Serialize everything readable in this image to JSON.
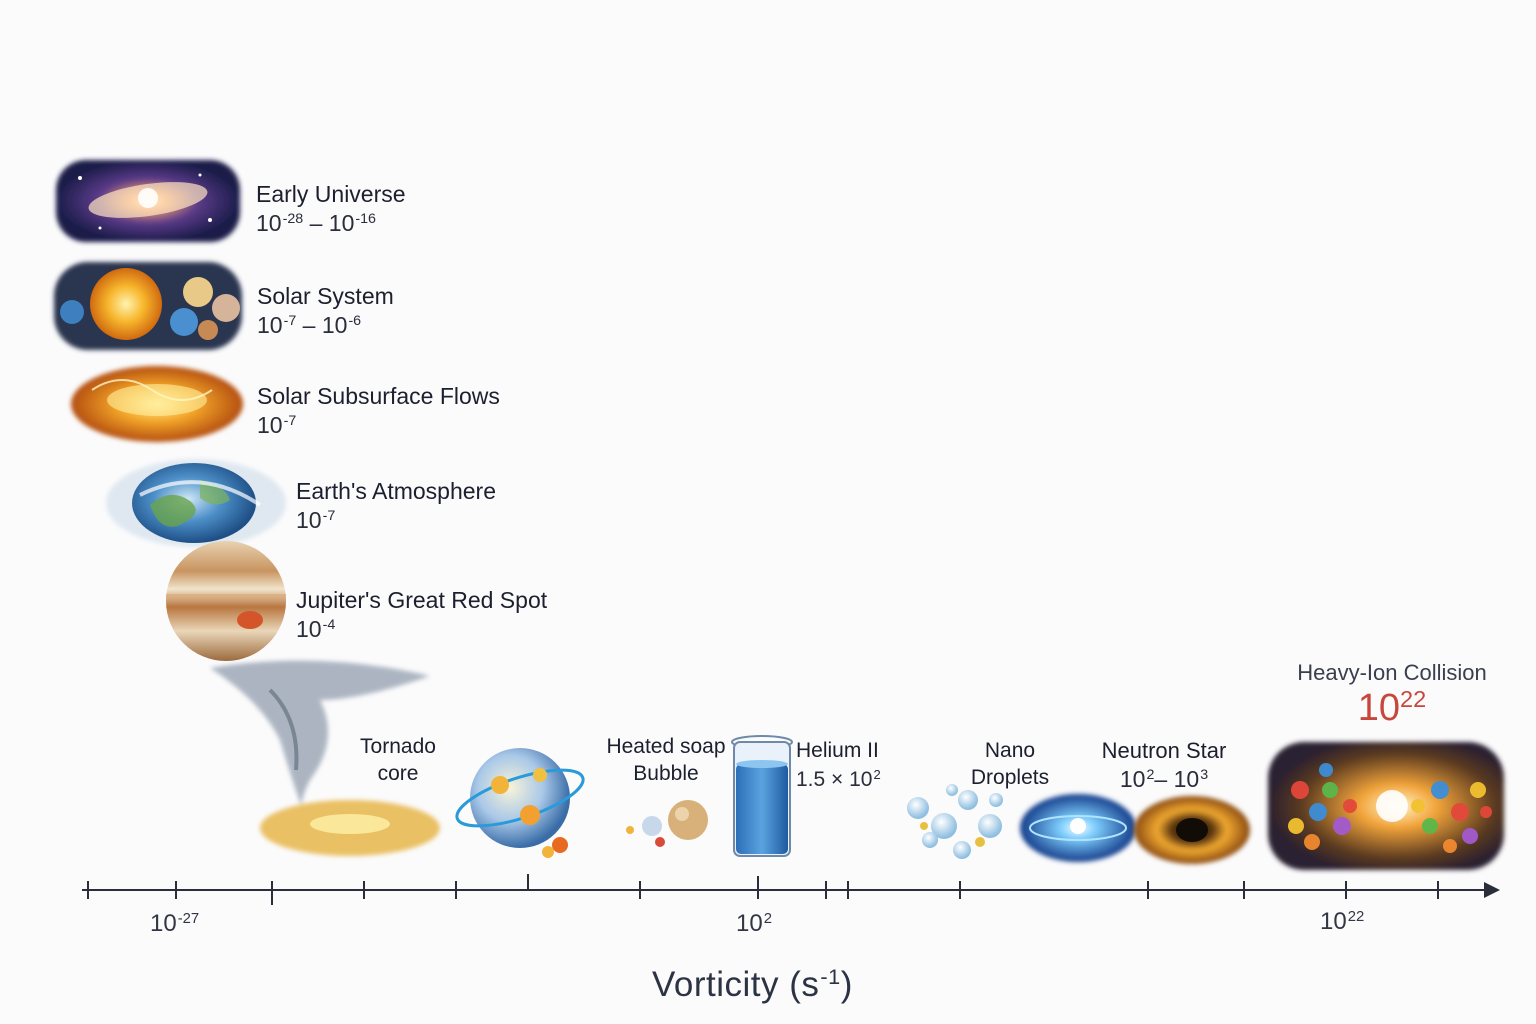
{
  "items": [
    {
      "name": "Early Universe",
      "value": {
        "base1": "10",
        "exp1": "-28",
        "sep": " – ",
        "base2": "10",
        "exp2": "-16"
      },
      "icon": "galaxy-icon"
    },
    {
      "name": "Solar System",
      "value": {
        "base1": "10",
        "exp1": "-7",
        "sep": " – ",
        "base2": "10",
        "exp2": "-6"
      },
      "icon": "solar-system-icon"
    },
    {
      "name": "Solar Subsurface Flows",
      "value": {
        "base1": "10",
        "exp1": "-7"
      },
      "icon": "sun-surface-icon"
    },
    {
      "name": "Earth's Atmosphere",
      "value": {
        "base1": "10",
        "exp1": "-7"
      },
      "icon": "earth-icon"
    },
    {
      "name": "Jupiter's Great Red Spot",
      "value": {
        "base1": "10",
        "exp1": "-4"
      },
      "icon": "jupiter-icon"
    }
  ],
  "bottom_items": {
    "tornado": {
      "line1": "Tornado",
      "line2": "core",
      "icon": "tornado-icon"
    },
    "soap": {
      "line1": "Heated soap",
      "line2": "Bubble",
      "icon": "soap-bubble-icon"
    },
    "helium": {
      "name": "Helium II",
      "value": "1.5 × 10",
      "exp": "2",
      "icon": "beaker-icon"
    },
    "nano": {
      "line1": "Nano",
      "line2": "Droplets",
      "icon": "droplets-icon"
    },
    "neutron": {
      "name": "Neutron Star",
      "base1": "10",
      "exp1": "2",
      "sep": "– ",
      "base2": "10",
      "exp2": "3",
      "icon": "neutron-star-icon"
    },
    "heavy": {
      "name": "Heavy-Ion Collision",
      "base": "10",
      "exp": "22",
      "icon": "collision-icon"
    }
  },
  "axis": {
    "title": "Vorticity (s",
    "title_exp": "-1",
    "title_close": ")",
    "ticks": [
      {
        "base": "10",
        "exp": "-27"
      },
      {
        "base": "10",
        "exp": "2"
      },
      {
        "base": "10",
        "exp": "22"
      }
    ]
  },
  "colors": {
    "axis": "#2a2d3a",
    "accent_red": "#c8473d"
  }
}
